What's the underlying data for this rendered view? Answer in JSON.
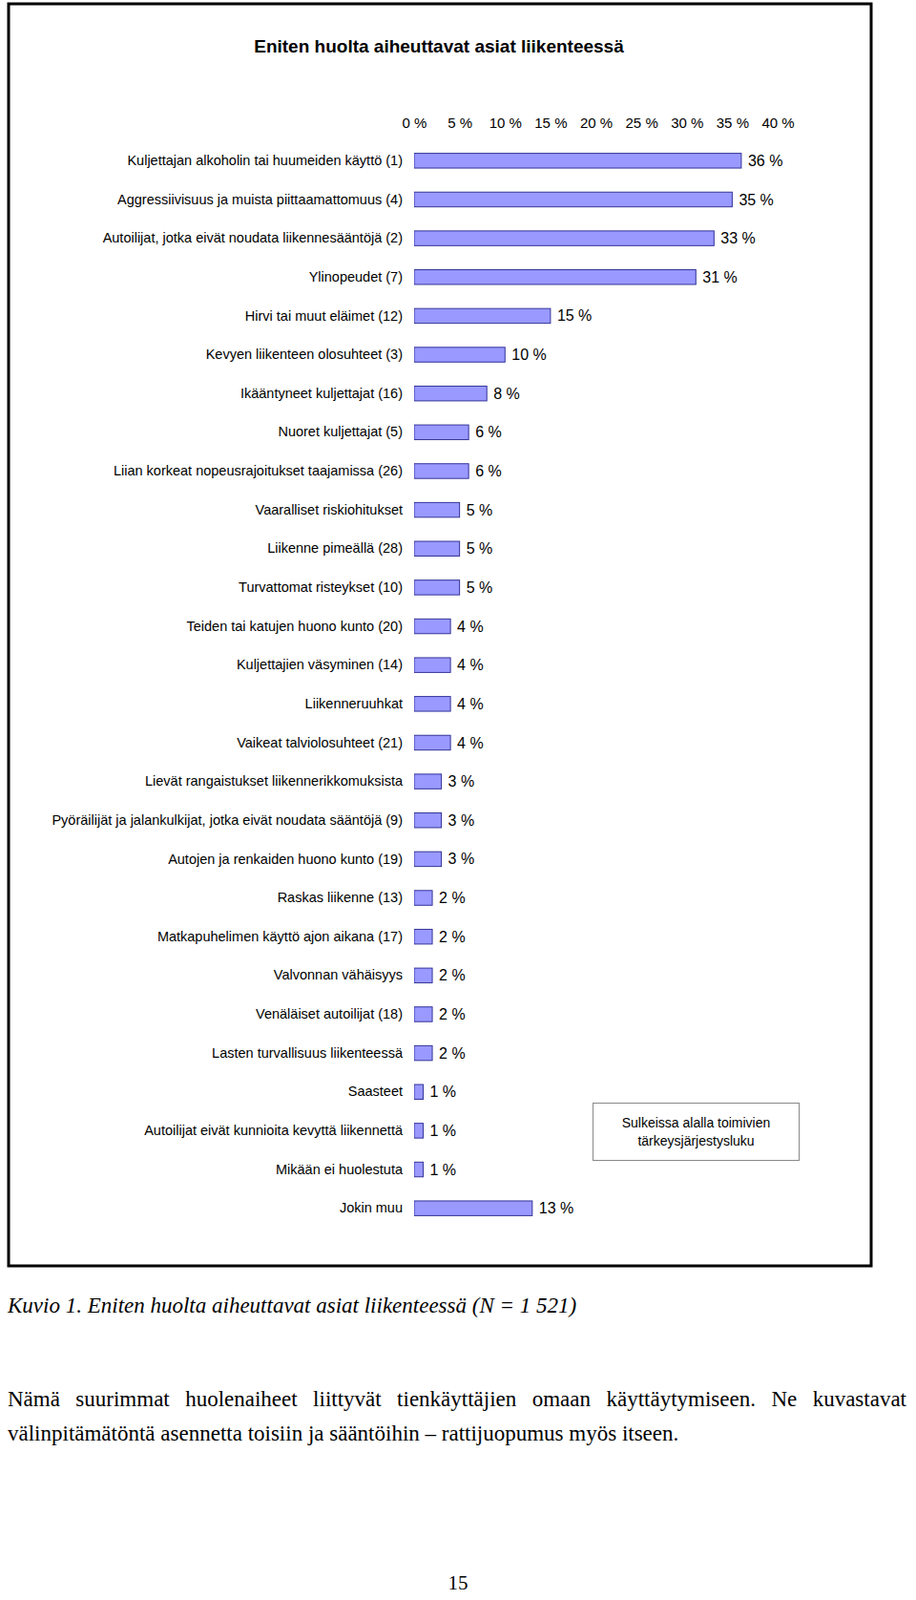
{
  "chart_data": {
    "type": "bar",
    "orientation": "horizontal",
    "title": "Eniten huolta aiheuttavat asiat liikenteessä",
    "categories": [
      "Kuljettajan alkoholin tai huumeiden käyttö (1)",
      "Aggressiivisuus ja muista piittaamattomuus (4)",
      "Autoilijat, jotka eivät noudata liikennesääntöjä (2)",
      "Ylinopeudet (7)",
      "Hirvi tai muut eläimet (12)",
      "Kevyen liikenteen olosuhteet (3)",
      "Ikääntyneet kuljettajat (16)",
      "Nuoret kuljettajat (5)",
      "Liian korkeat nopeusrajoitukset taajamissa (26)",
      "Vaaralliset riskiohitukset",
      "Liikenne pimeällä (28)",
      "Turvattomat risteykset (10)",
      "Teiden tai katujen huono kunto (20)",
      "Kuljettajien väsyminen (14)",
      "Liikenneruuhkat",
      "Vaikeat talviolosuhteet (21)",
      "Lievät rangaistukset liikennerikkomuksista",
      "Pyöräilijät ja jalankulkijat, jotka eivät noudata sääntöjä (9)",
      "Autojen ja renkaiden huono kunto (19)",
      "Raskas liikenne (13)",
      "Matkapuhelimen käyttö ajon aikana (17)",
      "Valvonnan vähäisyys",
      "Venäläiset autoilijat (18)",
      "Lasten turvallisuus liikenteessä",
      "Saasteet",
      "Autoilijat eivät kunnioita kevyttä liikennettä",
      "Mikään ei huolestuta",
      "Jokin muu"
    ],
    "values": [
      36,
      35,
      33,
      31,
      15,
      10,
      8,
      6,
      6,
      5,
      5,
      5,
      4,
      4,
      4,
      4,
      3,
      3,
      3,
      2,
      2,
      2,
      2,
      2,
      1,
      1,
      1,
      13
    ],
    "value_labels": [
      "36 %",
      "35 %",
      "33 %",
      "31 %",
      "15 %",
      "10 %",
      "8 %",
      "6 %",
      "6 %",
      "5 %",
      "5 %",
      "5 %",
      "4 %",
      "4 %",
      "4 %",
      "4 %",
      "3 %",
      "3 %",
      "3 %",
      "2 %",
      "2 %",
      "2 %",
      "2 %",
      "2 %",
      "1 %",
      "1 %",
      "1 %",
      "13 %"
    ],
    "data_labels": true,
    "color": "#9999ff",
    "xlim": [
      0,
      40
    ],
    "xticks": [
      {
        "value": 0,
        "label": "0 %"
      },
      {
        "value": 5,
        "label": "5 %"
      },
      {
        "value": 10,
        "label": "10 %"
      },
      {
        "value": 15,
        "label": "15 %"
      },
      {
        "value": 20,
        "label": "20 %"
      },
      {
        "value": 25,
        "label": "25 %"
      },
      {
        "value": 30,
        "label": "30 %"
      },
      {
        "value": 35,
        "label": "35 %"
      },
      {
        "value": 40,
        "label": "40 %"
      }
    ],
    "grid": false,
    "annotations": [
      "Sulkeissa alalla toimivien tärkeysjärjestysluku"
    ]
  },
  "document": {
    "caption": "Kuvio 1. Eniten huolta aiheuttavat asiat liikenteessä (N = 1 521)",
    "text": "Nämä suurimmat huolenaiheet liittyvät tienkäyttäjien omaan käyttäytymiseen. Ne kuvastavat välinpitämätöntä asennetta toisiin ja sääntöihin – rattijuopumus myös itseen.",
    "page_number": 15
  }
}
